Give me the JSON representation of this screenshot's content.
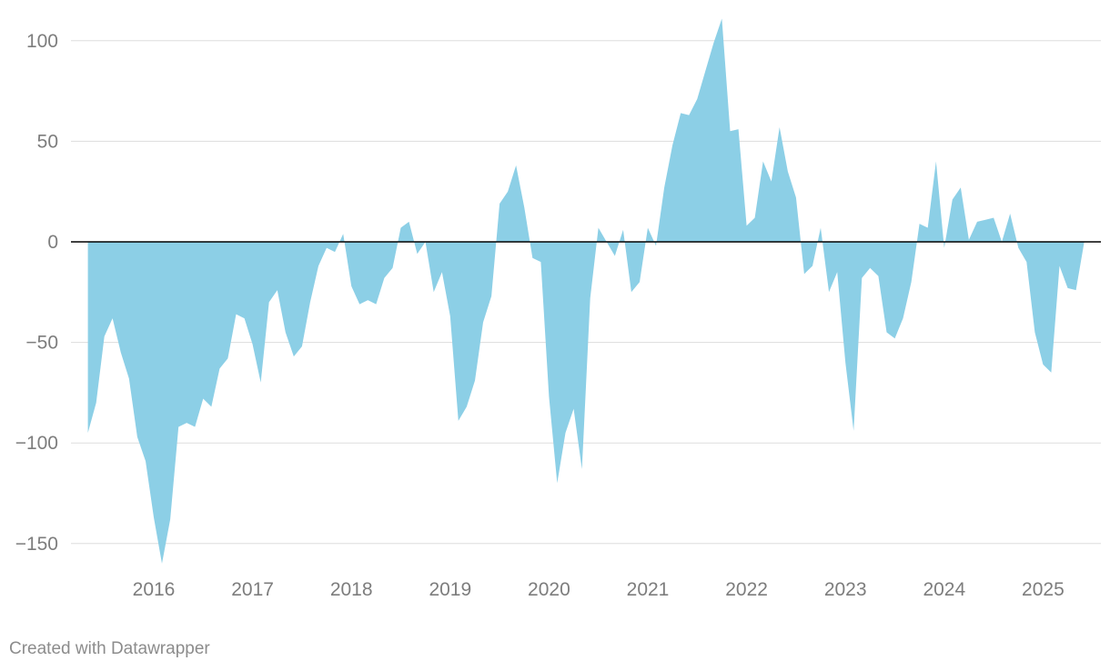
{
  "credit": "Created with Datawrapper",
  "colors": {
    "area": "#8ccfe6",
    "grid": "#dddddd",
    "zero_line": "#000000",
    "tick_text": "#7d7d7d"
  },
  "chart_data": {
    "type": "area",
    "title": "",
    "xlabel": "",
    "ylabel": "",
    "grid": true,
    "legend": "none",
    "xlim": [
      2015.083,
      2025.583
    ],
    "ylim": [
      -160,
      110
    ],
    "x_ticks": [
      2016,
      2017,
      2018,
      2019,
      2020,
      2021,
      2022,
      2023,
      2024,
      2025
    ],
    "x_tick_labels": [
      "2016",
      "2017",
      "2018",
      "2019",
      "2020",
      "2021",
      "2022",
      "2023",
      "2024",
      "2025"
    ],
    "y_ticks": [
      100,
      50,
      0,
      -50,
      -100,
      -150
    ],
    "y_tick_labels": [
      "100",
      "50",
      "0",
      "−50",
      "−100",
      "−150"
    ],
    "series": [
      {
        "x": [
          2015.333,
          2015.417,
          2015.5,
          2015.583,
          2015.667,
          2015.75,
          2015.833,
          2015.917,
          2016.0,
          2016.083,
          2016.167,
          2016.25,
          2016.333,
          2016.417,
          2016.5,
          2016.583,
          2016.667,
          2016.75,
          2016.833,
          2016.917,
          2017.0,
          2017.083,
          2017.167,
          2017.25,
          2017.333,
          2017.417,
          2017.5,
          2017.583,
          2017.667,
          2017.75,
          2017.833,
          2017.917,
          2018.0,
          2018.083,
          2018.167,
          2018.25,
          2018.333,
          2018.417,
          2018.5,
          2018.583,
          2018.667,
          2018.75,
          2018.833,
          2018.917,
          2019.0,
          2019.083,
          2019.167,
          2019.25,
          2019.333,
          2019.417,
          2019.5,
          2019.583,
          2019.667,
          2019.75,
          2019.833,
          2019.917,
          2020.0,
          2020.083,
          2020.167,
          2020.25,
          2020.333,
          2020.417,
          2020.5,
          2020.583,
          2020.667,
          2020.75,
          2020.833,
          2020.917,
          2021.0,
          2021.083,
          2021.167,
          2021.25,
          2021.333,
          2021.417,
          2021.5,
          2021.583,
          2021.667,
          2021.75,
          2021.833,
          2021.917,
          2022.0,
          2022.083,
          2022.167,
          2022.25,
          2022.333,
          2022.417,
          2022.5,
          2022.583,
          2022.667,
          2022.75,
          2022.833,
          2022.917,
          2023.0,
          2023.083,
          2023.167,
          2023.25,
          2023.333,
          2023.417,
          2023.5,
          2023.583,
          2023.667,
          2023.75,
          2023.833,
          2023.917,
          2024.0,
          2024.083,
          2024.167,
          2024.25,
          2024.333,
          2024.417,
          2024.5,
          2024.583,
          2024.667,
          2024.75,
          2024.833,
          2024.917,
          2025.0,
          2025.083,
          2025.167,
          2025.25,
          2025.333,
          2025.417
        ],
        "values": [
          -95,
          -80,
          -47,
          -38,
          -55,
          -68,
          -97,
          -109,
          -137,
          -160,
          -138,
          -92,
          -90,
          -92,
          -78,
          -82,
          -63,
          -58,
          -36,
          -38,
          -51,
          -70,
          -30,
          -24,
          -45,
          -57,
          -52,
          -30,
          -12,
          -3,
          -5,
          4,
          -22,
          -31,
          -29,
          -31,
          -18,
          -13,
          7,
          10,
          -6,
          0,
          -25,
          -15,
          -37,
          -89,
          -82,
          -69,
          -40,
          -27,
          19,
          25,
          38,
          17,
          -8,
          -10,
          -77,
          -120,
          -95,
          -83,
          -113,
          -28,
          7,
          0,
          -7,
          6,
          -25,
          -20,
          7,
          -2,
          27,
          48,
          64,
          63,
          71,
          85,
          99,
          111,
          55,
          56,
          8,
          12,
          40,
          30,
          57,
          35,
          22,
          -16,
          -12,
          7,
          -25,
          -15,
          -60,
          -94,
          -18,
          -13,
          -17,
          -45,
          -48,
          -38,
          -20,
          9,
          7,
          40,
          -3,
          21,
          27,
          1,
          10,
          11,
          12,
          0,
          14,
          -3,
          -10,
          -45,
          -61,
          -65,
          -12,
          -23,
          -24,
          0
        ]
      }
    ]
  }
}
